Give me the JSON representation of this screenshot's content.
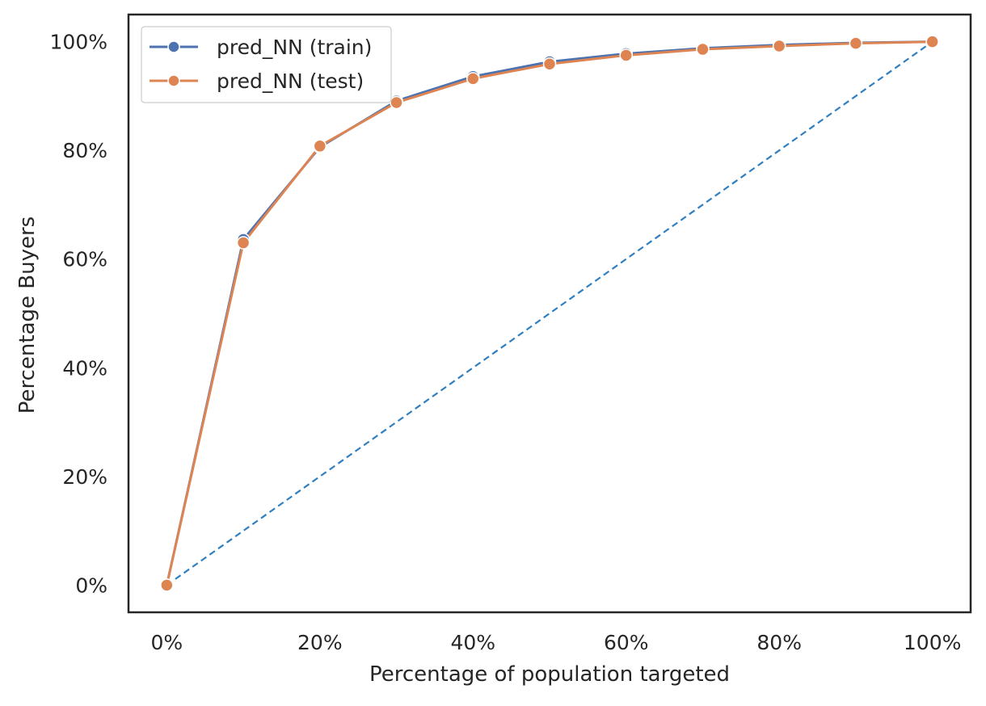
{
  "chart_data": {
    "type": "line",
    "title": "",
    "xlabel": "Percentage of population targeted",
    "ylabel": "Percentage Buyers",
    "xlim": [
      -5,
      105
    ],
    "ylim": [
      -5,
      105
    ],
    "x_ticks": [
      0,
      20,
      40,
      60,
      80,
      100
    ],
    "y_ticks": [
      0,
      20,
      40,
      60,
      80,
      100
    ],
    "x_tick_labels": [
      "0%",
      "20%",
      "40%",
      "60%",
      "80%",
      "100%"
    ],
    "y_tick_labels": [
      "0%",
      "20%",
      "40%",
      "60%",
      "80%",
      "100%"
    ],
    "grid": false,
    "legend_position": "top-left",
    "x": [
      0,
      10,
      20,
      30,
      40,
      50,
      60,
      70,
      80,
      90,
      100
    ],
    "series": [
      {
        "name": "pred_NN (train)",
        "color": "#4c72b0",
        "marker": "circle",
        "values": [
          0,
          63.6,
          80.6,
          89.1,
          93.6,
          96.3,
          97.8,
          98.8,
          99.4,
          99.8,
          100
        ]
      },
      {
        "name": "pred_NN (test)",
        "color": "#dd8452",
        "marker": "circle",
        "values": [
          0,
          63.0,
          80.8,
          88.8,
          93.2,
          95.9,
          97.5,
          98.6,
          99.2,
          99.7,
          100
        ]
      }
    ],
    "reference_line": {
      "style": "dashed",
      "color": "#2f7fc1",
      "x": [
        0,
        100
      ],
      "y": [
        0,
        100
      ]
    }
  }
}
